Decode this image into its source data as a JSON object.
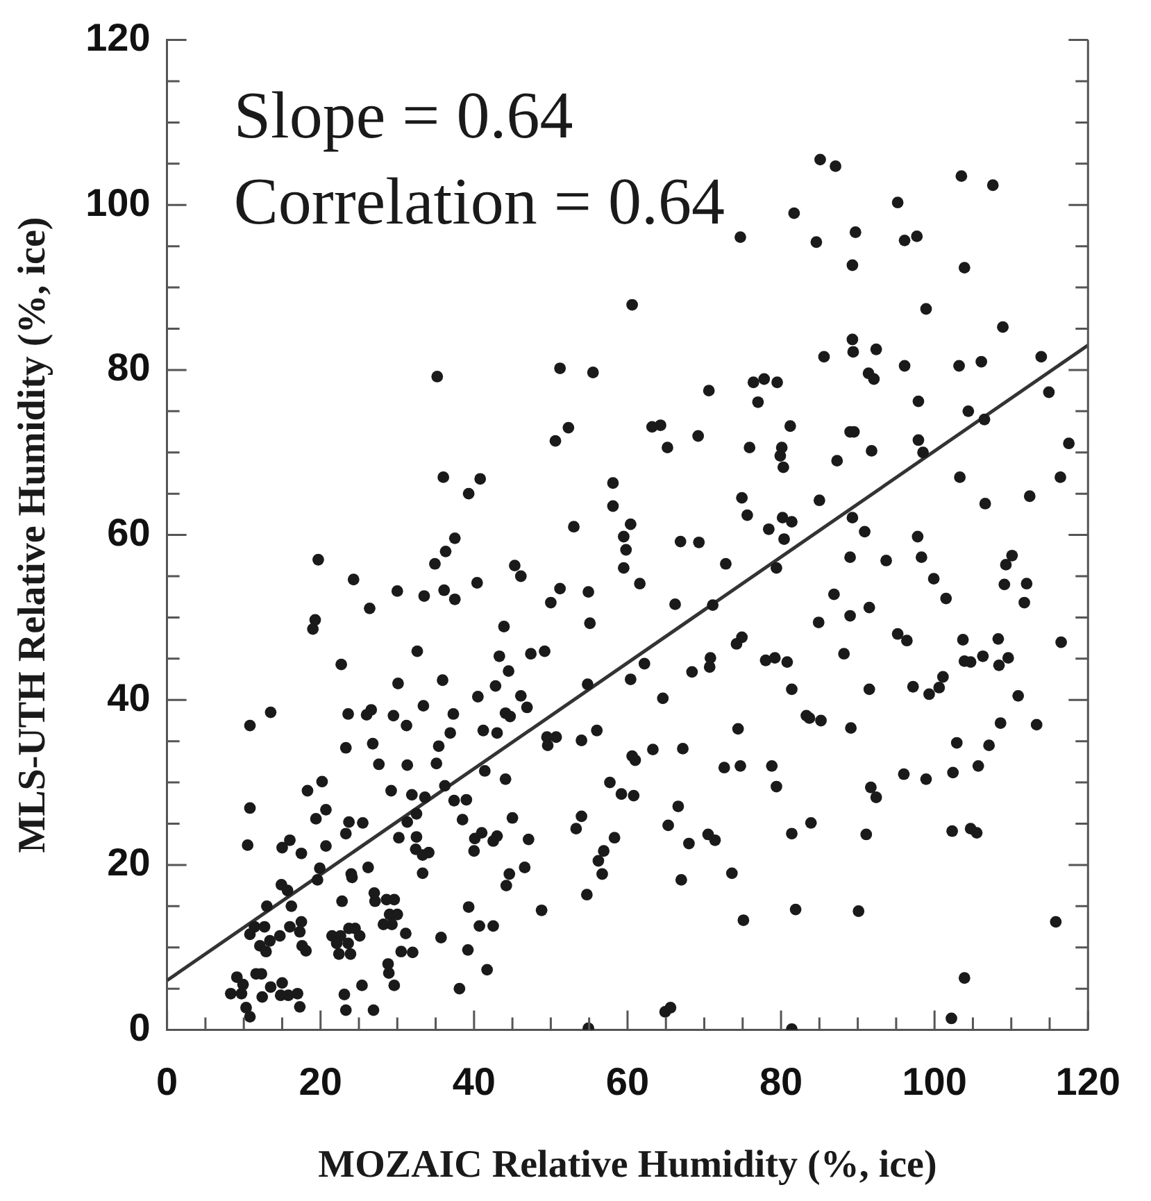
{
  "chart_data": {
    "type": "scatter",
    "xlabel": "MOZAIC Relative Humidity (%, ice)",
    "ylabel": "MLS-UTH Relative Humidity (%, ice)",
    "annotations": [
      "Slope = 0.64",
      "Correlation = 0.64"
    ],
    "xlim": [
      0,
      120
    ],
    "ylim": [
      0,
      120
    ],
    "xticks": [
      0,
      {
        "value": 5,
        "label": null
      },
      {
        "value": 10,
        "label": null
      },
      {
        "value": 15,
        "label": null
      },
      20,
      {
        "value": 25,
        "label": null
      },
      {
        "value": 30,
        "label": null
      },
      {
        "value": 35,
        "label": null
      },
      40,
      {
        "value": 45,
        "label": null
      },
      {
        "value": 50,
        "label": null
      },
      {
        "value": 55,
        "label": null
      },
      60,
      {
        "value": 65,
        "label": null
      },
      {
        "value": 70,
        "label": null
      },
      {
        "value": 75,
        "label": null
      },
      80,
      {
        "value": 85,
        "label": null
      },
      {
        "value": 90,
        "label": null
      },
      {
        "value": 95,
        "label": null
      },
      100,
      {
        "value": 105,
        "label": null
      },
      {
        "value": 110,
        "label": null
      },
      {
        "value": 115,
        "label": null
      },
      120
    ],
    "yticks": [
      0,
      {
        "value": 5,
        "label": null
      },
      {
        "value": 10,
        "label": null
      },
      {
        "value": 15,
        "label": null
      },
      20,
      {
        "value": 25,
        "label": null
      },
      {
        "value": 30,
        "label": null
      },
      {
        "value": 35,
        "label": null
      },
      40,
      {
        "value": 45,
        "label": null
      },
      {
        "value": 50,
        "label": null
      },
      {
        "value": 55,
        "label": null
      },
      60,
      {
        "value": 65,
        "label": null
      },
      {
        "value": 70,
        "label": null
      },
      {
        "value": 75,
        "label": null
      },
      80,
      {
        "value": 85,
        "label": null
      },
      {
        "value": 90,
        "label": null
      },
      {
        "value": 95,
        "label": null
      },
      100,
      {
        "value": 105,
        "label": null
      },
      {
        "value": 110,
        "label": null
      },
      {
        "value": 115,
        "label": null
      },
      120
    ],
    "series": [
      {
        "type": "scatter",
        "color": "#1a1a1a",
        "marker": "circle",
        "x": [
          19.7,
          24.3,
          26.4,
          19.3,
          19.0,
          22.7,
          10.8,
          13.5,
          10.8,
          10.5,
          23.6,
          23.3,
          26.0,
          26.6,
          26.8,
          27.6,
          29.5,
          31.2,
          30.1,
          30.0,
          33.5,
          32.6,
          33.4,
          34.9,
          36.3,
          37.5,
          36.1,
          37.5,
          40.4,
          35.9,
          37.3,
          36.9,
          35.4,
          35.1,
          36.2,
          31.3,
          29.2,
          31.9,
          33.6,
          32.5,
          31.3,
          30.2,
          32.5,
          32.4,
          33.3,
          34.1,
          33.3,
          37.4,
          39.0,
          38.5,
          40.1,
          41.0,
          40.0,
          42.5,
          43.0,
          47.1,
          45.0,
          44.1,
          41.4,
          41.2,
          43.0,
          42.8,
          40.5,
          43.3,
          44.5,
          43.9,
          45.3,
          46.1,
          44.1,
          44.7,
          46.1,
          46.9,
          47.4,
          49.2,
          50.0,
          51.2,
          49.5,
          50.7,
          49.6,
          54.0,
          56.0,
          54.9,
          55.1,
          54.8,
          59.5,
          59.8,
          59.5,
          61.6,
          62.2,
          60.4,
          60.6,
          61.0,
          57.7,
          59.2,
          60.8,
          54.0,
          53.3,
          58.3,
          56.9,
          56.2,
          56.7,
          54.7,
          48.8,
          46.6,
          44.6,
          44.2,
          40.7,
          42.5,
          39.3,
          39.2,
          41.7,
          38.1,
          35.7,
          31.1,
          30.5,
          32.0,
          28.8,
          28.9,
          29.6,
          27.0,
          27.1,
          28.6,
          29.6,
          29.0,
          30.0,
          28.2,
          29.3,
          26.2,
          24.0,
          24.1,
          23.7,
          24.5,
          25.1,
          21.5,
          22.6,
          22.1,
          23.6,
          22.4,
          23.9,
          22.8,
          23.1,
          23.3,
          26.9,
          25.4,
          20.2,
          18.3,
          20.7,
          19.4,
          20.7,
          23.3,
          23.7,
          25.5,
          19.9,
          19.6,
          17.5,
          16.0,
          15.0,
          14.9,
          15.7,
          16.2,
          13.0,
          11.4,
          12.7,
          10.8,
          17.5,
          17.3,
          16.0,
          14.7,
          13.4,
          12.1,
          12.9,
          17.6,
          18.1,
          11.6,
          12.3,
          9.1,
          9.9,
          8.3,
          9.7,
          12.4,
          13.5,
          15.0,
          14.8,
          15.8,
          17.0,
          17.3,
          10.3,
          10.8,
          54.9,
          66.9,
          69.3,
          72.8,
          80.4,
          79.4,
          66.2,
          71.1,
          74.9,
          74.2,
          70.8,
          70.7,
          68.4,
          64.6,
          78.0,
          79.2,
          80.8,
          81.4,
          83.3,
          83.7,
          85.2,
          89.0,
          93.7,
          97.8,
          98.3,
          99.9,
          101.5,
          86.9,
          91.5,
          89.0,
          84.9,
          88.2,
          91.5,
          95.2,
          96.4,
          97.2,
          99.3,
          100.6,
          101.1,
          89.1,
          103.7,
          103.9,
          104.7,
          106.3,
          108.3,
          108.4,
          109.6,
          109.1,
          109.3,
          110.1,
          112.0,
          111.7,
          110.9,
          108.6,
          107.1,
          102.9,
          102.4,
          105.7,
          113.3,
          116.5,
          98.9,
          96.0,
          91.7,
          92.4,
          78.8,
          79.4,
          74.7,
          72.6,
          74.4,
          67.2,
          63.3,
          66.6,
          65.3,
          70.5,
          71.4,
          68.0,
          81.4,
          83.9,
          91.1,
          102.3,
          104.7,
          105.5,
          67.0,
          73.6,
          81.9,
          90.1,
          75.1,
          115.8,
          103.9,
          102.2,
          64.9,
          65.6,
          81.4,
          85.1,
          87.1,
          81.7,
          95.2,
          103.5,
          107.6,
          74.7,
          84.6,
          89.7,
          89.3,
          96.1,
          97.7,
          103.9,
          98.9,
          108.9,
          89.3,
          89.4,
          92.4,
          85.6,
          91.4,
          92.1,
          96.1,
          103.2,
          106.1,
          113.9,
          114.9,
          97.9,
          104.4,
          106.5,
          97.9,
          98.5,
          89.0,
          89.5,
          91.8,
          87.3,
          117.5,
          116.4,
          112.4,
          106.6,
          103.3,
          85.0,
          89.3,
          90.9,
          76.4,
          77.8,
          79.5,
          77.0,
          70.6,
          81.2,
          75.9,
          80.1,
          79.9,
          80.3,
          74.9,
          75.6,
          80.2,
          81.4,
          78.4,
          63.2,
          64.3,
          65.2,
          69.2,
          60.6,
          35.2,
          51.2,
          55.5,
          52.3,
          50.6,
          36.0,
          40.8,
          39.3,
          58.1,
          58.1,
          53.0,
          60.4
        ],
        "values": [
          57.0,
          54.6,
          51.1,
          49.7,
          48.6,
          44.3,
          36.9,
          38.5,
          26.9,
          22.4,
          38.3,
          34.2,
          38.2,
          38.8,
          34.7,
          32.2,
          38.1,
          36.9,
          42.0,
          53.2,
          52.6,
          45.9,
          39.3,
          56.5,
          58.0,
          59.6,
          53.3,
          52.2,
          54.2,
          42.4,
          38.3,
          36.0,
          34.4,
          32.3,
          29.6,
          32.1,
          29.0,
          28.5,
          28.2,
          26.2,
          25.2,
          23.3,
          23.4,
          21.9,
          21.2,
          21.5,
          19.0,
          27.8,
          27.9,
          25.5,
          23.2,
          23.9,
          21.7,
          22.9,
          23.5,
          23.1,
          25.7,
          30.4,
          31.4,
          36.3,
          36.0,
          41.7,
          40.4,
          45.3,
          43.5,
          48.9,
          56.3,
          55.0,
          38.4,
          38.0,
          40.5,
          39.1,
          45.6,
          45.9,
          51.8,
          53.5,
          35.5,
          35.5,
          34.5,
          35.1,
          36.3,
          53.1,
          49.3,
          41.9,
          59.8,
          58.2,
          56.0,
          54.1,
          44.4,
          42.5,
          33.2,
          32.7,
          30.0,
          28.6,
          28.4,
          25.9,
          24.4,
          23.3,
          21.7,
          20.5,
          18.9,
          16.4,
          14.5,
          19.7,
          18.9,
          17.5,
          12.6,
          12.6,
          14.9,
          9.7,
          7.3,
          5.0,
          11.2,
          11.7,
          9.5,
          9.4,
          8.0,
          6.9,
          5.4,
          16.6,
          15.6,
          15.8,
          15.8,
          14.0,
          14.0,
          12.8,
          12.8,
          19.7,
          18.9,
          18.5,
          12.3,
          12.3,
          11.4,
          11.4,
          11.4,
          10.5,
          10.5,
          9.2,
          9.2,
          15.6,
          4.3,
          2.4,
          2.4,
          5.4,
          30.1,
          29.0,
          26.7,
          25.6,
          22.3,
          23.8,
          25.2,
          25.1,
          19.6,
          18.2,
          21.4,
          23.0,
          22.1,
          17.6,
          16.9,
          15.0,
          15.0,
          12.5,
          12.5,
          11.6,
          13.1,
          11.9,
          12.5,
          11.4,
          10.8,
          10.2,
          9.5,
          10.2,
          9.6,
          6.8,
          6.8,
          6.4,
          5.5,
          4.4,
          4.4,
          4.0,
          5.2,
          5.7,
          4.2,
          4.2,
          4.4,
          2.8,
          2.7,
          1.6,
          0.2,
          59.2,
          59.1,
          56.5,
          59.5,
          56.0,
          51.6,
          51.5,
          47.6,
          46.8,
          45.1,
          44.0,
          43.4,
          40.2,
          44.8,
          45.1,
          44.6,
          41.3,
          38.1,
          37.8,
          37.5,
          57.3,
          56.9,
          59.8,
          57.3,
          54.7,
          52.3,
          52.8,
          51.2,
          50.2,
          49.4,
          45.6,
          41.3,
          48.0,
          47.2,
          41.6,
          40.7,
          41.5,
          42.8,
          36.6,
          47.3,
          44.7,
          44.6,
          45.3,
          47.4,
          44.2,
          45.1,
          54.0,
          56.4,
          57.5,
          54.1,
          51.8,
          40.5,
          37.2,
          34.5,
          34.8,
          31.2,
          32.0,
          37.0,
          47.0,
          30.4,
          31.0,
          29.4,
          28.2,
          32.0,
          29.5,
          32.0,
          31.8,
          36.5,
          34.1,
          34.0,
          27.1,
          24.8,
          23.7,
          23.0,
          22.6,
          23.8,
          25.1,
          23.7,
          24.1,
          24.4,
          23.9,
          18.2,
          19.0,
          14.6,
          14.4,
          13.3,
          13.1,
          6.3,
          1.4,
          2.2,
          2.7,
          0.1,
          105.5,
          104.7,
          99.0,
          100.3,
          103.5,
          102.4,
          96.1,
          95.5,
          96.7,
          92.7,
          95.7,
          96.2,
          92.4,
          87.4,
          85.2,
          83.7,
          82.2,
          82.5,
          81.6,
          79.6,
          78.9,
          80.5,
          80.5,
          81.0,
          81.6,
          77.3,
          76.2,
          75.0,
          74.0,
          71.5,
          70.0,
          72.5,
          72.5,
          70.2,
          69.0,
          71.1,
          67.0,
          64.7,
          63.8,
          67.0,
          64.2,
          62.1,
          60.4,
          78.5,
          78.9,
          78.5,
          76.1,
          77.5,
          73.2,
          70.6,
          70.6,
          69.6,
          68.2,
          64.5,
          62.4,
          62.1,
          61.6,
          60.7,
          73.1,
          73.3,
          70.6,
          72.0,
          87.9,
          79.2,
          80.2,
          79.7,
          73.0,
          71.4,
          67.0,
          66.8,
          65.0,
          66.3,
          63.5,
          61.0,
          61.3
        ]
      },
      {
        "type": "line",
        "color": "#333333",
        "x": [
          0,
          120
        ],
        "values": [
          6,
          83
        ]
      }
    ]
  }
}
